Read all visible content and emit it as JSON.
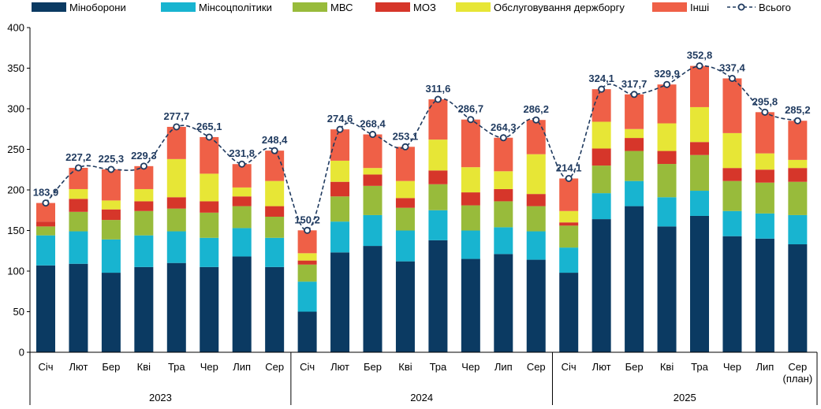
{
  "chart_data": {
    "type": "bar",
    "stacked": true,
    "ylim": [
      0,
      400
    ],
    "yticks": [
      0,
      50,
      100,
      150,
      200,
      250,
      300,
      350,
      400
    ],
    "grid": false,
    "legend_position": "top",
    "groups": [
      {
        "label": "2023",
        "categories": [
          "Січ",
          "Лют",
          "Бер",
          "Кві",
          "Тра",
          "Чер",
          "Лип",
          "Сер"
        ]
      },
      {
        "label": "2024",
        "categories": [
          "Січ",
          "Лют",
          "Бер",
          "Кві",
          "Тра",
          "Чер",
          "Лип",
          "Сер"
        ]
      },
      {
        "label": "2025",
        "categories": [
          "Січ",
          "Лют",
          "Бер",
          "Кві",
          "Тра",
          "Чер",
          "Лип",
          "Сер\n(план)"
        ]
      }
    ],
    "series": [
      {
        "name": "Міноборони",
        "color": "#0b3a62",
        "values": [
          107,
          109,
          98,
          105,
          110,
          105,
          118,
          105,
          50,
          123,
          131,
          112,
          138,
          115,
          121,
          114,
          98,
          164,
          180,
          155,
          168,
          143,
          140,
          133
        ]
      },
      {
        "name": "Мінсоцполітики",
        "color": "#18b4d0",
        "values": [
          37,
          40,
          41,
          39,
          39,
          36,
          35,
          36,
          37,
          38,
          38,
          38,
          37,
          35,
          33,
          35,
          31,
          32,
          31,
          36,
          31,
          31,
          31,
          36
        ]
      },
      {
        "name": "МВС",
        "color": "#98bb3b",
        "values": [
          11,
          24,
          24,
          30,
          28,
          31,
          27,
          26,
          21,
          31,
          36,
          28,
          32,
          31,
          32,
          31,
          27,
          34,
          37,
          41,
          44,
          37,
          38,
          41
        ]
      },
      {
        "name": "МОЗ",
        "color": "#d6362a",
        "values": [
          6,
          16,
          13,
          12,
          14,
          14,
          12,
          13,
          5,
          18,
          14,
          12,
          17,
          16,
          15,
          15,
          4,
          21,
          16,
          16,
          16,
          16,
          16,
          17
        ]
      },
      {
        "name": "Обслуговування держборгу",
        "color": "#e7e636",
        "values": [
          0,
          12,
          11,
          15,
          47,
          34,
          11,
          31,
          9,
          26,
          8,
          21,
          38,
          31,
          22,
          49,
          14,
          33,
          11,
          34,
          43,
          43,
          20,
          10
        ]
      },
      {
        "name": "Інші",
        "color": "#ef6047",
        "values": [
          22.9,
          26.2,
          38.3,
          28.3,
          39.7,
          45.1,
          28.8,
          37.4,
          28.2,
          38.6,
          41.4,
          42.1,
          49.6,
          58.7,
          41.3,
          42.2,
          40.1,
          40.1,
          42.7,
          47.9,
          50.8,
          67.4,
          50.8,
          48.2
        ]
      }
    ],
    "total": {
      "name": "Всього",
      "values": [
        183.9,
        227.2,
        225.3,
        229.3,
        277.7,
        265.1,
        231.8,
        248.4,
        150.2,
        274.6,
        268.4,
        253.1,
        311.6,
        286.7,
        264.3,
        286.2,
        214.1,
        324.1,
        317.7,
        329.9,
        352.8,
        337.4,
        295.8,
        285.2
      ],
      "labels": [
        "183,9",
        "227,2",
        "225,3",
        "229,3",
        "277,7",
        "265,1",
        "231,8",
        "248,4",
        "150,2",
        "274,6",
        "268,4",
        "253,1",
        "311,6",
        "286,7",
        "264,3",
        "286,2",
        "214,1",
        "324,1",
        "317,7",
        "329,9",
        "352,8",
        "337,4",
        "295,8",
        "285,2"
      ],
      "color": "#1f3a5f"
    }
  }
}
